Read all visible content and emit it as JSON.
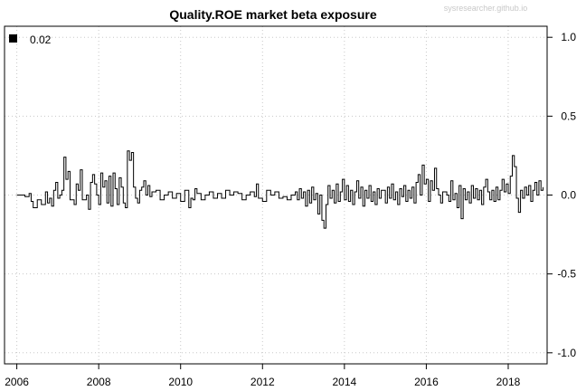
{
  "chart_data": {
    "type": "line",
    "title": "Quality.ROE market beta exposure",
    "watermark": "sysresearcher.github.io",
    "xlabel": "",
    "ylabel": "",
    "xlim": [
      2005.7,
      2018.95
    ],
    "ylim": [
      -1.07,
      1.07
    ],
    "x_ticks": [
      2006,
      2008,
      2010,
      2012,
      2014,
      2016,
      2018
    ],
    "x_tick_labels": [
      "2006",
      "2008",
      "2010",
      "2012",
      "2014",
      "2016",
      "2018"
    ],
    "y_ticks": [
      1.0,
      0.5,
      0.0,
      -0.5,
      -1.0
    ],
    "y_tick_labels": [
      "1.0",
      "0.5",
      "0.0",
      "-0.5",
      "-1.0"
    ],
    "y_axis_side": "right",
    "grid": true,
    "legend": {
      "position": "top-left",
      "entries": [
        "0.02"
      ]
    },
    "series": [
      {
        "color": "#000000",
        "style": "step",
        "points": [
          [
            2006.0,
            0.0
          ],
          [
            2006.1,
            0.0
          ],
          [
            2006.2,
            -0.01
          ],
          [
            2006.3,
            0.01
          ],
          [
            2006.35,
            -0.04
          ],
          [
            2006.4,
            -0.08
          ],
          [
            2006.5,
            -0.03
          ],
          [
            2006.6,
            -0.06
          ],
          [
            2006.7,
            0.02
          ],
          [
            2006.75,
            -0.05
          ],
          [
            2006.8,
            -0.02
          ],
          [
            2006.85,
            -0.07
          ],
          [
            2006.9,
            0.03
          ],
          [
            2006.95,
            0.08
          ],
          [
            2007.0,
            -0.02
          ],
          [
            2007.05,
            0.0
          ],
          [
            2007.1,
            0.03
          ],
          [
            2007.15,
            0.24
          ],
          [
            2007.2,
            0.1
          ],
          [
            2007.25,
            0.15
          ],
          [
            2007.3,
            -0.03
          ],
          [
            2007.4,
            -0.06
          ],
          [
            2007.45,
            0.07
          ],
          [
            2007.5,
            0.03
          ],
          [
            2007.55,
            0.16
          ],
          [
            2007.6,
            -0.03
          ],
          [
            2007.7,
            0.0
          ],
          [
            2007.75,
            -0.09
          ],
          [
            2007.8,
            0.08
          ],
          [
            2007.85,
            0.13
          ],
          [
            2007.9,
            0.07
          ],
          [
            2007.95,
            0.0
          ],
          [
            2008.0,
            -0.06
          ],
          [
            2008.05,
            0.14
          ],
          [
            2008.1,
            0.05
          ],
          [
            2008.15,
            0.09
          ],
          [
            2008.2,
            -0.05
          ],
          [
            2008.25,
            0.12
          ],
          [
            2008.3,
            -0.07
          ],
          [
            2008.35,
            0.14
          ],
          [
            2008.4,
            0.04
          ],
          [
            2008.45,
            -0.06
          ],
          [
            2008.5,
            0.11
          ],
          [
            2008.55,
            0.05
          ],
          [
            2008.6,
            -0.05
          ],
          [
            2008.65,
            -0.08
          ],
          [
            2008.7,
            0.28
          ],
          [
            2008.75,
            0.22
          ],
          [
            2008.8,
            0.27
          ],
          [
            2008.85,
            0.05
          ],
          [
            2008.9,
            -0.02
          ],
          [
            2008.95,
            -0.05
          ],
          [
            2009.0,
            0.03
          ],
          [
            2009.05,
            0.05
          ],
          [
            2009.1,
            0.09
          ],
          [
            2009.15,
            0.0
          ],
          [
            2009.2,
            0.06
          ],
          [
            2009.25,
            -0.01
          ],
          [
            2009.3,
            0.02
          ],
          [
            2009.4,
            0.03
          ],
          [
            2009.5,
            -0.03
          ],
          [
            2009.6,
            0.0
          ],
          [
            2009.7,
            0.02
          ],
          [
            2009.8,
            -0.02
          ],
          [
            2009.9,
            0.01
          ],
          [
            2010.0,
            -0.04
          ],
          [
            2010.1,
            0.03
          ],
          [
            2010.2,
            -0.08
          ],
          [
            2010.25,
            -0.02
          ],
          [
            2010.3,
            -0.03
          ],
          [
            2010.35,
            0.04
          ],
          [
            2010.4,
            0.01
          ],
          [
            2010.5,
            -0.03
          ],
          [
            2010.6,
            0.0
          ],
          [
            2010.7,
            0.02
          ],
          [
            2010.8,
            -0.02
          ],
          [
            2010.9,
            0.01
          ],
          [
            2011.0,
            -0.02
          ],
          [
            2011.1,
            0.03
          ],
          [
            2011.2,
            0.0
          ],
          [
            2011.3,
            0.02
          ],
          [
            2011.4,
            0.01
          ],
          [
            2011.5,
            -0.03
          ],
          [
            2011.6,
            0.0
          ],
          [
            2011.7,
            0.02
          ],
          [
            2011.8,
            -0.01
          ],
          [
            2011.85,
            0.07
          ],
          [
            2011.9,
            -0.02
          ],
          [
            2012.0,
            -0.04
          ],
          [
            2012.1,
            0.03
          ],
          [
            2012.2,
            0.0
          ],
          [
            2012.3,
            0.02
          ],
          [
            2012.4,
            -0.02
          ],
          [
            2012.5,
            -0.01
          ],
          [
            2012.6,
            -0.03
          ],
          [
            2012.7,
            0.0
          ],
          [
            2012.8,
            0.02
          ],
          [
            2012.85,
            -0.03
          ],
          [
            2012.9,
            0.04
          ],
          [
            2012.95,
            -0.02
          ],
          [
            2013.0,
            0.02
          ],
          [
            2013.05,
            -0.07
          ],
          [
            2013.1,
            0.03
          ],
          [
            2013.15,
            -0.05
          ],
          [
            2013.2,
            0.05
          ],
          [
            2013.25,
            -0.03
          ],
          [
            2013.3,
            0.01
          ],
          [
            2013.35,
            -0.12
          ],
          [
            2013.4,
            0.0
          ],
          [
            2013.45,
            -0.16
          ],
          [
            2013.5,
            -0.21
          ],
          [
            2013.55,
            -0.06
          ],
          [
            2013.6,
            0.06
          ],
          [
            2013.65,
            -0.02
          ],
          [
            2013.7,
            0.03
          ],
          [
            2013.75,
            -0.05
          ],
          [
            2013.8,
            0.07
          ],
          [
            2013.85,
            -0.04
          ],
          [
            2013.9,
            0.02
          ],
          [
            2013.95,
            0.1
          ],
          [
            2014.0,
            -0.03
          ],
          [
            2014.05,
            0.06
          ],
          [
            2014.1,
            -0.04
          ],
          [
            2014.15,
            0.03
          ],
          [
            2014.2,
            -0.06
          ],
          [
            2014.25,
            0.02
          ],
          [
            2014.3,
            0.09
          ],
          [
            2014.35,
            -0.02
          ],
          [
            2014.4,
            0.05
          ],
          [
            2014.45,
            -0.07
          ],
          [
            2014.5,
            0.03
          ],
          [
            2014.55,
            -0.02
          ],
          [
            2014.6,
            0.06
          ],
          [
            2014.65,
            -0.04
          ],
          [
            2014.7,
            0.02
          ],
          [
            2014.75,
            -0.06
          ],
          [
            2014.8,
            0.04
          ],
          [
            2014.85,
            -0.02
          ],
          [
            2014.9,
            0.03
          ],
          [
            2015.0,
            -0.05
          ],
          [
            2015.05,
            0.05
          ],
          [
            2015.1,
            -0.02
          ],
          [
            2015.15,
            0.07
          ],
          [
            2015.2,
            -0.03
          ],
          [
            2015.25,
            0.02
          ],
          [
            2015.3,
            -0.06
          ],
          [
            2015.35,
            0.04
          ],
          [
            2015.4,
            -0.01
          ],
          [
            2015.45,
            0.06
          ],
          [
            2015.5,
            -0.04
          ],
          [
            2015.55,
            0.03
          ],
          [
            2015.6,
            -0.02
          ],
          [
            2015.65,
            0.05
          ],
          [
            2015.7,
            -0.05
          ],
          [
            2015.75,
            0.08
          ],
          [
            2015.8,
            0.13
          ],
          [
            2015.85,
            0.0
          ],
          [
            2015.9,
            0.19
          ],
          [
            2015.95,
            0.07
          ],
          [
            2016.0,
            0.1
          ],
          [
            2016.05,
            -0.04
          ],
          [
            2016.1,
            0.09
          ],
          [
            2016.15,
            0.03
          ],
          [
            2016.2,
            0.17
          ],
          [
            2016.25,
            0.04
          ],
          [
            2016.3,
            0.0
          ],
          [
            2016.35,
            -0.05
          ],
          [
            2016.4,
            0.02
          ],
          [
            2016.5,
            0.0
          ],
          [
            2016.55,
            -0.04
          ],
          [
            2016.6,
            0.09
          ],
          [
            2016.65,
            -0.03
          ],
          [
            2016.7,
            0.01
          ],
          [
            2016.75,
            -0.08
          ],
          [
            2016.8,
            0.06
          ],
          [
            2016.85,
            -0.15
          ],
          [
            2016.9,
            0.04
          ],
          [
            2016.95,
            -0.03
          ],
          [
            2017.0,
            0.02
          ],
          [
            2017.05,
            -0.05
          ],
          [
            2017.1,
            0.06
          ],
          [
            2017.15,
            -0.02
          ],
          [
            2017.2,
            0.04
          ],
          [
            2017.25,
            -0.03
          ],
          [
            2017.3,
            0.03
          ],
          [
            2017.35,
            -0.06
          ],
          [
            2017.4,
            0.05
          ],
          [
            2017.45,
            0.1
          ],
          [
            2017.5,
            0.02
          ],
          [
            2017.55,
            -0.03
          ],
          [
            2017.6,
            0.03
          ],
          [
            2017.65,
            -0.04
          ],
          [
            2017.7,
            0.05
          ],
          [
            2017.75,
            -0.03
          ],
          [
            2017.8,
            0.03
          ],
          [
            2017.85,
            0.1
          ],
          [
            2017.9,
            0.02
          ],
          [
            2017.95,
            0.07
          ],
          [
            2018.0,
            0.01
          ],
          [
            2018.05,
            0.12
          ],
          [
            2018.1,
            0.25
          ],
          [
            2018.15,
            0.18
          ],
          [
            2018.2,
            -0.02
          ],
          [
            2018.25,
            -0.11
          ],
          [
            2018.3,
            0.03
          ],
          [
            2018.35,
            -0.02
          ],
          [
            2018.4,
            0.05
          ],
          [
            2018.45,
            0.0
          ],
          [
            2018.5,
            0.06
          ],
          [
            2018.55,
            -0.04
          ],
          [
            2018.6,
            0.03
          ],
          [
            2018.65,
            0.08
          ],
          [
            2018.7,
            0.0
          ],
          [
            2018.75,
            0.09
          ],
          [
            2018.8,
            0.03
          ],
          [
            2018.85,
            0.05
          ]
        ]
      }
    ]
  }
}
